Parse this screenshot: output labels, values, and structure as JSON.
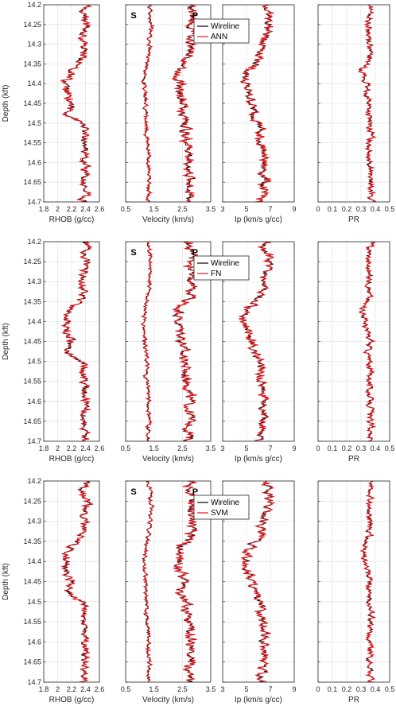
{
  "colors": {
    "wireline": "#000000",
    "predicted": "#e8141b",
    "grid": "#e6e6e6",
    "axis": "#262626"
  },
  "chart_data": {
    "type": "line",
    "depth_axis": {
      "label": "Depth (kft)",
      "ticks": [
        "14.2",
        "14.25",
        "14.3",
        "14.35",
        "14.4",
        "14.45",
        "14.5",
        "14.55",
        "14.6",
        "14.65",
        "14.7"
      ],
      "lim": [
        14.2,
        14.7
      ],
      "reversed": true
    },
    "tracks": [
      {
        "key": "rhob",
        "xlabel": "RHOB (g/cc)",
        "xlim": [
          1.8,
          2.6
        ],
        "xticks": [
          "1.8",
          "2",
          "2.2",
          "2.4",
          "2.6"
        ],
        "base": [
          2.4,
          2.38,
          2.42,
          2.38,
          2.38,
          2.35,
          2.2,
          2.1,
          2.12,
          2.2,
          2.15,
          2.38,
          2.37,
          2.4,
          2.38,
          2.4,
          2.38,
          2.4,
          2.38
        ]
      },
      {
        "key": "velocity",
        "xlabel": "Velocity (km/s)",
        "xlim": [
          0.5,
          3.5
        ],
        "xticks": [
          "0.5",
          "1.5",
          "2.5",
          "3.5"
        ],
        "labels": [
          "S",
          "P"
        ],
        "base_s": [
          1.3,
          1.35,
          1.4,
          1.35,
          1.35,
          1.3,
          1.2,
          1.15,
          1.18,
          1.2,
          1.2,
          1.25,
          1.2,
          1.3,
          1.3,
          1.3,
          1.35,
          1.3,
          1.3
        ],
        "base_p": [
          2.75,
          2.8,
          2.85,
          2.8,
          2.8,
          2.75,
          2.4,
          2.35,
          2.45,
          2.55,
          2.5,
          2.65,
          2.6,
          2.75,
          2.75,
          2.75,
          2.8,
          2.75,
          2.75
        ]
      },
      {
        "key": "ip",
        "xlabel": "Ip (km/s g/cc)",
        "xlim": [
          3,
          9
        ],
        "xticks": [
          "3",
          "5",
          "7",
          "9"
        ],
        "base": [
          6.6,
          6.8,
          6.9,
          6.6,
          6.4,
          6.1,
          5.2,
          4.8,
          5.1,
          5.5,
          5.6,
          6.2,
          6.0,
          6.4,
          6.5,
          6.4,
          6.6,
          6.3,
          6.2
        ]
      },
      {
        "key": "pr",
        "xlabel": "PR",
        "xlim": [
          0,
          0.5
        ],
        "xticks": [
          "0",
          "0.1",
          "0.2",
          "0.3",
          "0.4",
          "0.5"
        ],
        "base": [
          0.37,
          0.36,
          0.35,
          0.36,
          0.36,
          0.36,
          0.31,
          0.33,
          0.34,
          0.36,
          0.35,
          0.36,
          0.37,
          0.36,
          0.36,
          0.37,
          0.36,
          0.37,
          0.37
        ]
      }
    ],
    "rows": [
      {
        "model": "ANN",
        "legend": [
          "Wireline",
          "ANN"
        ],
        "seed": 3
      },
      {
        "model": "FN",
        "legend": [
          "Wireline",
          "FN"
        ],
        "seed": 11
      },
      {
        "model": "SVM",
        "legend": [
          "Wireline",
          "SVM"
        ],
        "seed": 23
      }
    ]
  }
}
